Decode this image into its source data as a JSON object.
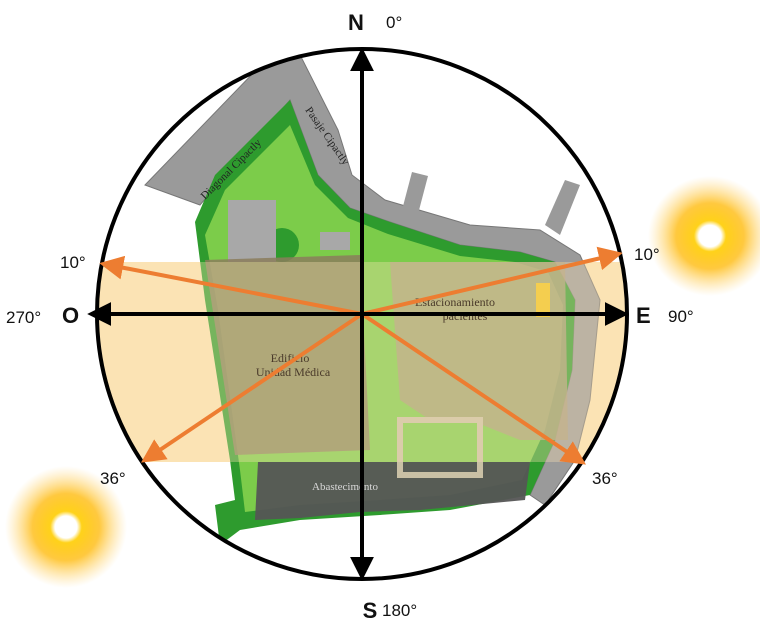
{
  "compass": {
    "north": "N",
    "north_deg": "0°",
    "south": "S",
    "south_deg": "180°",
    "east": "E",
    "east_deg": "90°",
    "west": "O",
    "west_deg": "270°"
  },
  "sun_angles": {
    "upper_left": "10°",
    "upper_right": "10°",
    "lower_left": "36°",
    "lower_right": "36°"
  },
  "plan_labels": {
    "street_1": "Diagonal Cipactly",
    "street_2": "Pasaje Cipactly",
    "parking_line1": "Estacionamiento",
    "parking_line2": "pacientes",
    "building_line1": "Edificio",
    "building_line2": "Unidad Médica",
    "supply": "Abastecimento"
  },
  "colors": {
    "sun_band": "#fbe3b4",
    "arrow_orange": "#ed7d31",
    "green_dark": "#1f8a1f",
    "green_light": "#7ccc4a",
    "street_gray": "#9a9a9a",
    "building_brown": "#8b7d5c",
    "supply_gray": "#555555",
    "sun_core": "#ffffff",
    "sun_glow": "#f5a800"
  }
}
